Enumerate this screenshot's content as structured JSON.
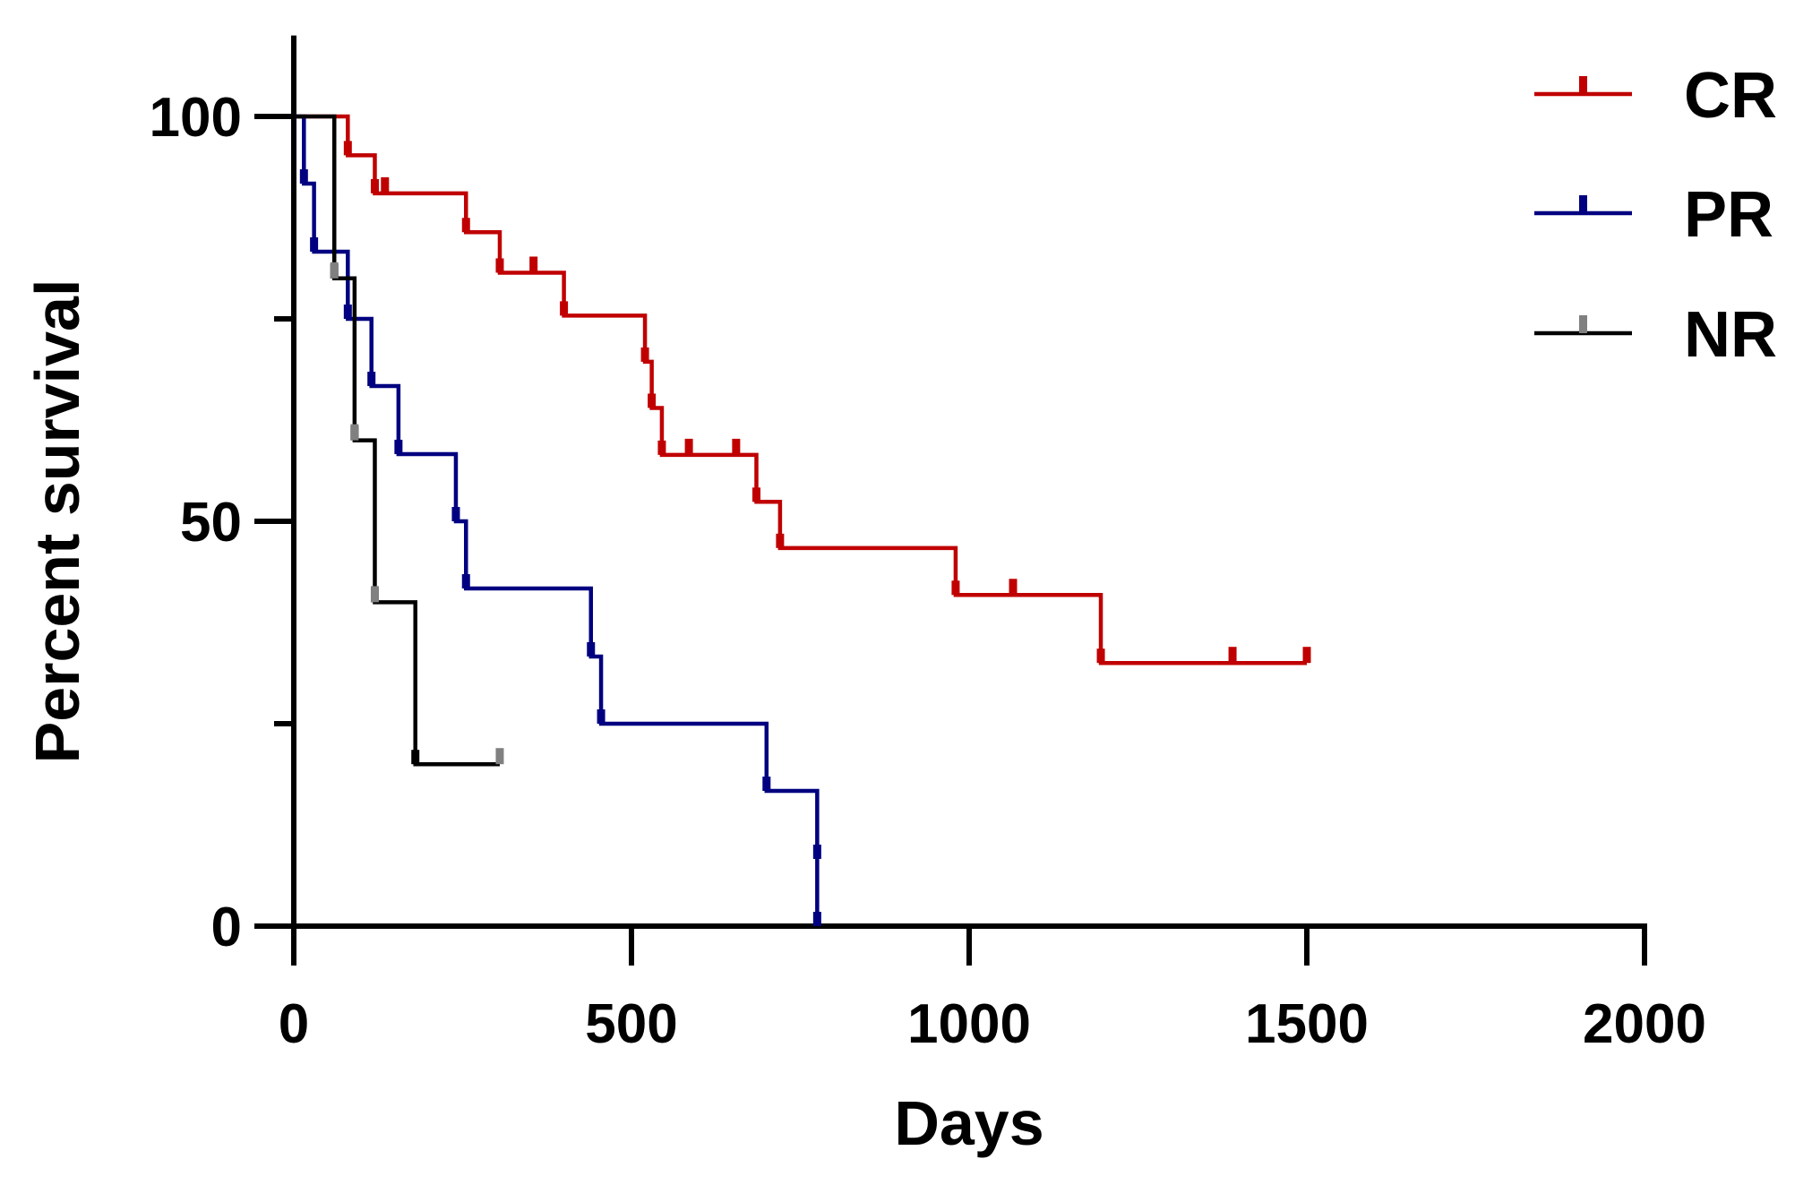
{
  "chart_data": {
    "type": "line",
    "subtype": "kaplan-meier step survival curve",
    "title": "",
    "xlabel": "Days",
    "ylabel": "Percent survival",
    "xlim": [
      0,
      2000
    ],
    "ylim": [
      0,
      110
    ],
    "x_ticks": [
      0,
      500,
      1000,
      1500,
      2000
    ],
    "x_tick_labels": [
      "0",
      "500",
      "1000",
      "1500",
      "2000"
    ],
    "y_ticks": [
      0,
      50,
      100
    ],
    "y_tick_labels": [
      "0",
      "50",
      "100"
    ],
    "y_minor_ticks": [
      25,
      75
    ],
    "grid": false,
    "legend_position": "top-right",
    "series": [
      {
        "name": "CR",
        "color": "#c00000",
        "steps": [
          [
            0,
            100
          ],
          [
            80,
            95.2
          ],
          [
            120,
            90.5
          ],
          [
            255,
            85.7
          ],
          [
            305,
            80.7
          ],
          [
            400,
            75.4
          ],
          [
            520,
            69.7
          ],
          [
            530,
            64
          ],
          [
            545,
            58.2
          ],
          [
            685,
            52.4
          ],
          [
            720,
            46.7
          ],
          [
            980,
            40.9
          ],
          [
            1195,
            32.5
          ]
        ],
        "end_x": 1500,
        "censored": [
          [
            135,
            90.5
          ],
          [
            355,
            80.7
          ],
          [
            585,
            58.2
          ],
          [
            655,
            58.2
          ],
          [
            1065,
            40.9
          ],
          [
            1390,
            32.5
          ],
          [
            1500,
            32.5
          ]
        ]
      },
      {
        "name": "PR",
        "color": "#000080",
        "steps": [
          [
            0,
            100
          ],
          [
            15,
            91.7
          ],
          [
            30,
            83.3
          ],
          [
            80,
            75
          ],
          [
            115,
            66.7
          ],
          [
            155,
            58.3
          ],
          [
            240,
            50
          ],
          [
            255,
            41.7
          ],
          [
            440,
            33.3
          ],
          [
            455,
            25
          ],
          [
            700,
            16.7
          ],
          [
            775,
            8.3
          ]
        ],
        "end_x": 775,
        "end_y": 0,
        "censored": []
      },
      {
        "name": "NR",
        "color": "#000000",
        "censor_color": "#808080",
        "steps": [
          [
            0,
            100
          ],
          [
            60,
            80
          ],
          [
            90,
            60
          ],
          [
            120,
            40
          ],
          [
            180,
            20
          ]
        ],
        "end_x": 305,
        "censored": [
          [
            60,
            80
          ],
          [
            90,
            60
          ],
          [
            120,
            40
          ],
          [
            305,
            20
          ]
        ]
      }
    ]
  }
}
